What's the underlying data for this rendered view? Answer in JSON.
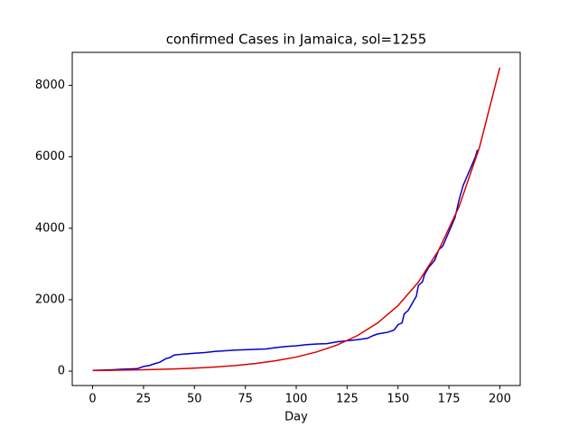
{
  "chart_data": {
    "type": "line",
    "title": "confirmed Cases in Jamaica, sol=1255",
    "x_label": "Day",
    "xlim": [
      -10,
      210
    ],
    "xticks": [
      0,
      25,
      50,
      75,
      100,
      125,
      150,
      175,
      200
    ],
    "ylim": [
      -403,
      8924
    ],
    "yticks": [
      0,
      2000,
      4000,
      6000,
      8000
    ],
    "series": [
      {
        "color": "#0000cc",
        "x": [
          0,
          5,
          10,
          15,
          20,
          22,
          25,
          28,
          30,
          33,
          36,
          38,
          40,
          45,
          50,
          55,
          60,
          65,
          70,
          75,
          80,
          85,
          90,
          95,
          100,
          105,
          110,
          115,
          120,
          125,
          130,
          135,
          138,
          140,
          145,
          148,
          150,
          152,
          153,
          155,
          157,
          159,
          160,
          162,
          163,
          165,
          168,
          170,
          172,
          175,
          178,
          180,
          182,
          185,
          188,
          189
        ],
        "values": [
          20,
          30,
          40,
          55,
          65,
          70,
          130,
          160,
          200,
          250,
          350,
          380,
          450,
          480,
          500,
          520,
          550,
          570,
          590,
          600,
          610,
          620,
          660,
          690,
          710,
          740,
          760,
          770,
          820,
          850,
          880,
          920,
          1000,
          1040,
          1090,
          1150,
          1300,
          1350,
          1600,
          1700,
          1900,
          2100,
          2400,
          2500,
          2700,
          2900,
          3100,
          3400,
          3500,
          3900,
          4300,
          4800,
          5200,
          5600,
          6000,
          6200
        ]
      },
      {
        "color": "#dd0000",
        "x": [
          0,
          10,
          20,
          30,
          40,
          50,
          60,
          70,
          80,
          90,
          100,
          110,
          120,
          130,
          140,
          150,
          160,
          170,
          180,
          190,
          200
        ],
        "values": [
          18,
          25,
          34,
          46,
          63,
          85,
          116,
          157,
          214,
          291,
          395,
          537,
          730,
          993,
          1350,
          1835,
          2494,
          3390,
          4608,
          6264,
          8500
        ]
      }
    ]
  }
}
